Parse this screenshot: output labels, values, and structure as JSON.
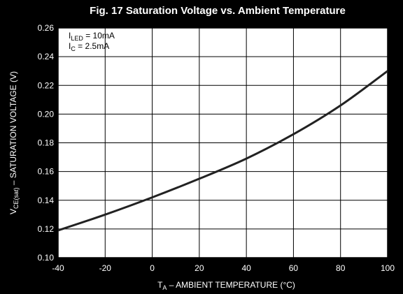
{
  "chart_data": {
    "type": "line",
    "title": "Fig. 17 Saturation Voltage vs. Ambient Temperature",
    "xlabel": {
      "main": "T",
      "sub": "A",
      "rest": " – AMBIENT TEMPERATURE (°C)"
    },
    "ylabel": {
      "main": "V",
      "sub": "CE(sat)",
      "rest": " – SATURATION VOLTAGE (V)"
    },
    "conditions": [
      {
        "main": "I",
        "sub": "LED",
        "rest": " = 10mA"
      },
      {
        "main": "I",
        "sub": "C",
        "rest": " = 2.5mA"
      }
    ],
    "xlim": [
      -40,
      100
    ],
    "ylim": [
      0.1,
      0.26
    ],
    "xticks": [
      -40,
      -20,
      0,
      20,
      40,
      60,
      80,
      100
    ],
    "yticks": [
      "0.10",
      "0.12",
      "0.14",
      "0.16",
      "0.18",
      "0.20",
      "0.22",
      "0.24",
      "0.26"
    ],
    "grid": true,
    "series": [
      {
        "x": [
          -40,
          -20,
          0,
          20,
          40,
          60,
          80,
          100
        ],
        "y": [
          0.119,
          0.13,
          0.142,
          0.155,
          0.169,
          0.186,
          0.206,
          0.23
        ]
      }
    ],
    "colors": {
      "background": "#000000",
      "plot_area": "#ffffff",
      "grid": "#000000",
      "line": "#222222",
      "text": "#ffffff"
    }
  }
}
